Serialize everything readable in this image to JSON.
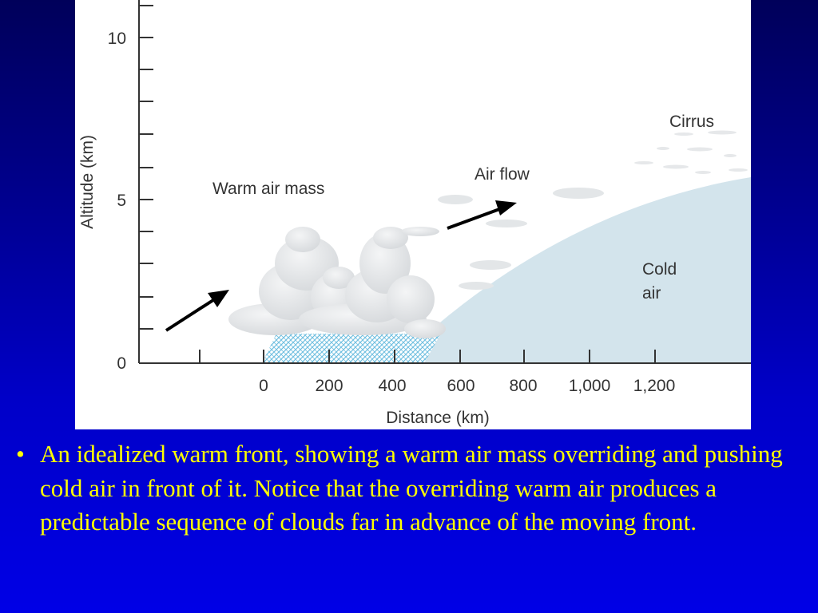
{
  "diagram": {
    "y_axis": {
      "label": "Altitude (km)",
      "tick_labels": [
        "0",
        "5",
        "10"
      ]
    },
    "x_axis": {
      "label": "Distance (km)",
      "tick_labels": [
        "0",
        "200",
        "400",
        "600",
        "800",
        "1,000",
        "1,200"
      ]
    },
    "labels": {
      "warm_air_mass": "Warm air mass",
      "air_flow": "Air flow",
      "cirrus": "Cirrus",
      "cold_air_line1": "Cold",
      "cold_air_line2": "air"
    },
    "colors": {
      "cold_air": "#d3e4ec",
      "cloud": "#e6e8ea",
      "rain": "#6fbfe0",
      "arrow": "#000000"
    }
  },
  "caption": {
    "bullet": "•",
    "text": "An idealized warm front, showing a warm air mass overriding and pushing cold air in front of it. Notice that the overriding warm air produces a predictable sequence of clouds far in advance of the moving front."
  },
  "slide": {
    "background_top": "#00005a",
    "background_bottom": "#0000e6",
    "caption_color": "#ffff00"
  }
}
